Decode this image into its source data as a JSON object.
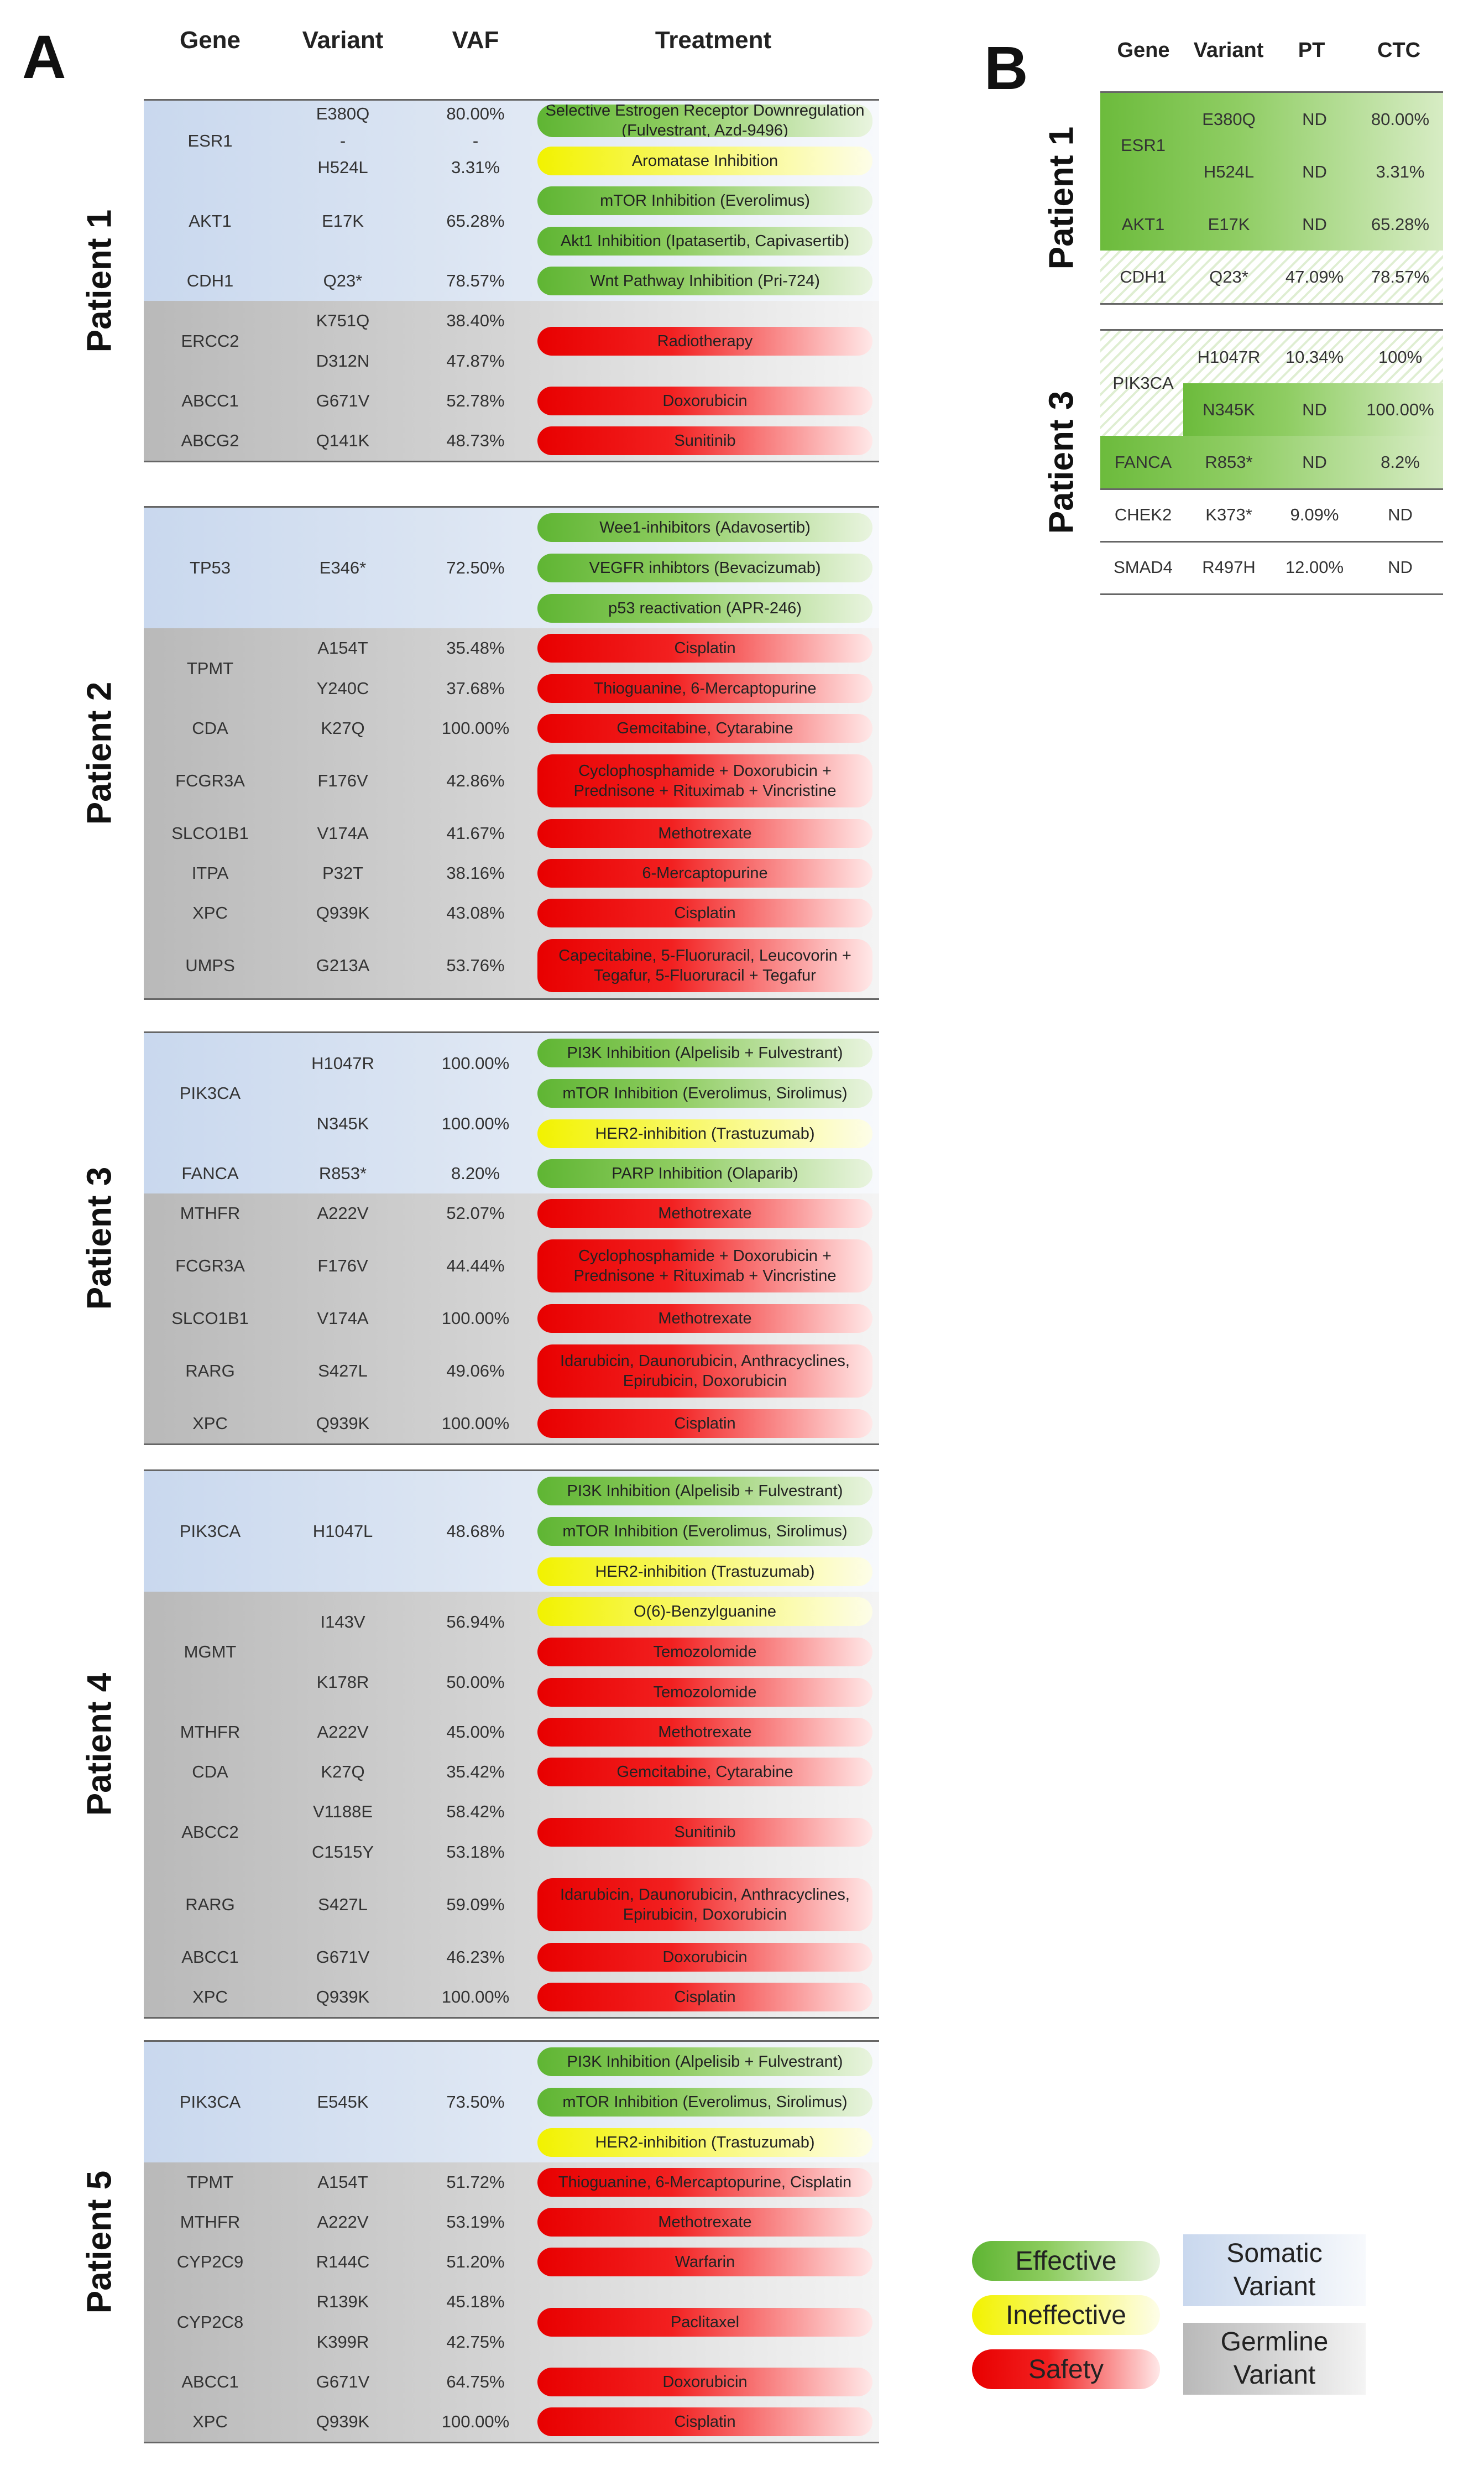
{
  "panel_a": {
    "label": "A",
    "headers": {
      "gene": "Gene",
      "variant": "Variant",
      "vaf": "VAF",
      "treatment": "Treatment"
    },
    "patients": [
      {
        "label": "Patient 1",
        "genes": [
          {
            "gene": "ESR1",
            "type": "somatic",
            "variants": [
              "E380Q",
              "-",
              "H524L"
            ],
            "vafs": [
              "80.00%",
              "-",
              "3.31%"
            ],
            "treatments": [
              {
                "text": "Selective Estrogen Receptor Downregulation (Fulvestrant, Azd-9496)",
                "category": "effective"
              },
              {
                "text": "Aromatase Inhibition",
                "category": "ineffective"
              }
            ]
          },
          {
            "gene": "AKT1",
            "type": "somatic",
            "variants": [
              "E17K"
            ],
            "vafs": [
              "65.28%"
            ],
            "treatments": [
              {
                "text": "mTOR Inhibition (Everolimus)",
                "category": "effective"
              },
              {
                "text": "Akt1 Inhibition (Ipatasertib, Capivasertib)",
                "category": "effective"
              }
            ]
          },
          {
            "gene": "CDH1",
            "type": "somatic",
            "variants": [
              "Q23*"
            ],
            "vafs": [
              "78.57%"
            ],
            "treatments": [
              {
                "text": "Wnt Pathway Inhibition (Pri-724)",
                "category": "effective"
              }
            ]
          },
          {
            "gene": "ERCC2",
            "type": "germline",
            "variants": [
              "K751Q",
              "D312N"
            ],
            "vafs": [
              "38.40%",
              "47.87%"
            ],
            "treatments": [
              {
                "text": "Radiotherapy",
                "category": "safety"
              }
            ]
          },
          {
            "gene": "ABCC1",
            "type": "germline",
            "variants": [
              "G671V"
            ],
            "vafs": [
              "52.78%"
            ],
            "treatments": [
              {
                "text": "Doxorubicin",
                "category": "safety"
              }
            ]
          },
          {
            "gene": "ABCG2",
            "type": "germline",
            "variants": [
              "Q141K"
            ],
            "vafs": [
              "48.73%"
            ],
            "treatments": [
              {
                "text": "Sunitinib",
                "category": "safety"
              }
            ]
          }
        ]
      },
      {
        "label": "Patient 2",
        "genes": [
          {
            "gene": "TP53",
            "type": "somatic",
            "variants": [
              "E346*"
            ],
            "vafs": [
              "72.50%"
            ],
            "treatments": [
              {
                "text": "Wee1-inhibitors (Adavosertib)",
                "category": "effective"
              },
              {
                "text": "VEGFR inhibtors (Bevacizumab)",
                "category": "effective"
              },
              {
                "text": "p53 reactivation (APR-246)",
                "category": "effective"
              }
            ]
          },
          {
            "gene": "TPMT",
            "type": "germline",
            "variants": [
              "A154T",
              "Y240C"
            ],
            "vafs": [
              "35.48%",
              "37.68%"
            ],
            "treatments": [
              {
                "text": "Cisplatin",
                "category": "safety"
              },
              {
                "text": "Thioguanine, 6-Mercaptopurine",
                "category": "safety"
              }
            ]
          },
          {
            "gene": "CDA",
            "type": "germline",
            "variants": [
              "K27Q"
            ],
            "vafs": [
              "100.00%"
            ],
            "treatments": [
              {
                "text": "Gemcitabine, Cytarabine",
                "category": "safety"
              }
            ]
          },
          {
            "gene": "FCGR3A",
            "type": "germline",
            "variants": [
              "F176V"
            ],
            "vafs": [
              "42.86%"
            ],
            "treatments": [
              {
                "text": "Cyclophosphamide + Doxorubicin + Prednisone + Rituximab + Vincristine",
                "category": "safety"
              }
            ]
          },
          {
            "gene": "SLCO1B1",
            "type": "germline",
            "variants": [
              "V174A"
            ],
            "vafs": [
              "41.67%"
            ],
            "treatments": [
              {
                "text": "Methotrexate",
                "category": "safety"
              }
            ]
          },
          {
            "gene": "ITPA",
            "type": "germline",
            "variants": [
              "P32T"
            ],
            "vafs": [
              "38.16%"
            ],
            "treatments": [
              {
                "text": "6-Mercaptopurine",
                "category": "safety"
              }
            ]
          },
          {
            "gene": "XPC",
            "type": "germline",
            "variants": [
              "Q939K"
            ],
            "vafs": [
              "43.08%"
            ],
            "treatments": [
              {
                "text": "Cisplatin",
                "category": "safety"
              }
            ]
          },
          {
            "gene": "UMPS",
            "type": "germline",
            "variants": [
              "G213A"
            ],
            "vafs": [
              "53.76%"
            ],
            "treatments": [
              {
                "text": "Capecitabine, 5-Fluoruracil, Leucovorin + Tegafur, 5-Fluoruracil + Tegafur",
                "category": "safety"
              }
            ]
          }
        ]
      },
      {
        "label": "Patient 3",
        "genes": [
          {
            "gene": "PIK3CA",
            "type": "somatic",
            "variants": [
              "H1047R",
              "N345K"
            ],
            "vafs": [
              "100.00%",
              "100.00%"
            ],
            "treatments": [
              {
                "text": "PI3K Inhibition (Alpelisib + Fulvestrant)",
                "category": "effective"
              },
              {
                "text": "mTOR Inhibition (Everolimus, Sirolimus)",
                "category": "effective"
              },
              {
                "text": "HER2-inhibition (Trastuzumab)",
                "category": "ineffective"
              }
            ]
          },
          {
            "gene": "FANCA",
            "type": "somatic",
            "variants": [
              "R853*"
            ],
            "vafs": [
              "8.20%"
            ],
            "treatments": [
              {
                "text": "PARP Inhibition (Olaparib)",
                "category": "effective"
              }
            ]
          },
          {
            "gene": "MTHFR",
            "type": "germline",
            "variants": [
              "A222V"
            ],
            "vafs": [
              "52.07%"
            ],
            "treatments": [
              {
                "text": "Methotrexate",
                "category": "safety"
              }
            ]
          },
          {
            "gene": "FCGR3A",
            "type": "germline",
            "variants": [
              "F176V"
            ],
            "vafs": [
              "44.44%"
            ],
            "treatments": [
              {
                "text": "Cyclophosphamide + Doxorubicin + Prednisone + Rituximab + Vincristine",
                "category": "safety"
              }
            ]
          },
          {
            "gene": "SLCO1B1",
            "type": "germline",
            "variants": [
              "V174A"
            ],
            "vafs": [
              "100.00%"
            ],
            "treatments": [
              {
                "text": "Methotrexate",
                "category": "safety"
              }
            ]
          },
          {
            "gene": "RARG",
            "type": "germline",
            "variants": [
              "S427L"
            ],
            "vafs": [
              "49.06%"
            ],
            "treatments": [
              {
                "text": "Idarubicin, Daunorubicin, Anthracyclines, Epirubicin, Doxorubicin",
                "category": "safety"
              }
            ]
          },
          {
            "gene": "XPC",
            "type": "germline",
            "variants": [
              "Q939K"
            ],
            "vafs": [
              "100.00%"
            ],
            "treatments": [
              {
                "text": "Cisplatin",
                "category": "safety"
              }
            ]
          }
        ]
      },
      {
        "label": "Patient 4",
        "genes": [
          {
            "gene": "PIK3CA",
            "type": "somatic",
            "variants": [
              "H1047L"
            ],
            "vafs": [
              "48.68%"
            ],
            "treatments": [
              {
                "text": "PI3K Inhibition (Alpelisib + Fulvestrant)",
                "category": "effective"
              },
              {
                "text": "mTOR Inhibition (Everolimus, Sirolimus)",
                "category": "effective"
              },
              {
                "text": "HER2-inhibition (Trastuzumab)",
                "category": "ineffective"
              }
            ]
          },
          {
            "gene": "MGMT",
            "type": "germline",
            "variants": [
              "I143V",
              "K178R"
            ],
            "vafs": [
              "56.94%",
              "50.00%"
            ],
            "treatments": [
              {
                "text": "O(6)-Benzylguanine",
                "category": "ineffective"
              },
              {
                "text": "Temozolomide",
                "category": "safety"
              },
              {
                "text": "Temozolomide",
                "category": "safety"
              }
            ]
          },
          {
            "gene": "MTHFR",
            "type": "germline",
            "variants": [
              "A222V"
            ],
            "vafs": [
              "45.00%"
            ],
            "treatments": [
              {
                "text": "Methotrexate",
                "category": "safety"
              }
            ]
          },
          {
            "gene": "CDA",
            "type": "germline",
            "variants": [
              "K27Q"
            ],
            "vafs": [
              "35.42%"
            ],
            "treatments": [
              {
                "text": "Gemcitabine, Cytarabine",
                "category": "safety"
              }
            ]
          },
          {
            "gene": "ABCC2",
            "type": "germline",
            "variants": [
              "V1188E",
              "C1515Y"
            ],
            "vafs": [
              "58.42%",
              "53.18%"
            ],
            "treatments": [
              {
                "text": "Sunitinib",
                "category": "safety"
              }
            ]
          },
          {
            "gene": "RARG",
            "type": "germline",
            "variants": [
              "S427L"
            ],
            "vafs": [
              "59.09%"
            ],
            "treatments": [
              {
                "text": "Idarubicin, Daunorubicin, Anthracyclines, Epirubicin, Doxorubicin",
                "category": "safety"
              }
            ]
          },
          {
            "gene": "ABCC1",
            "type": "germline",
            "variants": [
              "G671V"
            ],
            "vafs": [
              "46.23%"
            ],
            "treatments": [
              {
                "text": "Doxorubicin",
                "category": "safety"
              }
            ]
          },
          {
            "gene": "XPC",
            "type": "germline",
            "variants": [
              "Q939K"
            ],
            "vafs": [
              "100.00%"
            ],
            "treatments": [
              {
                "text": "Cisplatin",
                "category": "safety"
              }
            ]
          }
        ]
      },
      {
        "label": "Patient 5",
        "genes": [
          {
            "gene": "PIK3CA",
            "type": "somatic",
            "variants": [
              "E545K"
            ],
            "vafs": [
              "73.50%"
            ],
            "treatments": [
              {
                "text": "PI3K Inhibition (Alpelisib + Fulvestrant)",
                "category": "effective"
              },
              {
                "text": "mTOR Inhibition (Everolimus, Sirolimus)",
                "category": "effective"
              },
              {
                "text": "HER2-inhibition (Trastuzumab)",
                "category": "ineffective"
              }
            ]
          },
          {
            "gene": "TPMT",
            "type": "germline",
            "variants": [
              "A154T"
            ],
            "vafs": [
              "51.72%"
            ],
            "treatments": [
              {
                "text": "Thioguanine, 6-Mercaptopurine, Cisplatin",
                "category": "safety"
              }
            ]
          },
          {
            "gene": "MTHFR",
            "type": "germline",
            "variants": [
              "A222V"
            ],
            "vafs": [
              "53.19%"
            ],
            "treatments": [
              {
                "text": "Methotrexate",
                "category": "safety"
              }
            ]
          },
          {
            "gene": "CYP2C9",
            "type": "germline",
            "variants": [
              "R144C"
            ],
            "vafs": [
              "51.20%"
            ],
            "treatments": [
              {
                "text": "Warfarin",
                "category": "safety"
              }
            ]
          },
          {
            "gene": "CYP2C8",
            "type": "germline",
            "variants": [
              "R139K",
              "K399R"
            ],
            "vafs": [
              "45.18%",
              "42.75%"
            ],
            "treatments": [
              {
                "text": "Paclitaxel",
                "category": "safety"
              }
            ]
          },
          {
            "gene": "ABCC1",
            "type": "germline",
            "variants": [
              "G671V"
            ],
            "vafs": [
              "64.75%"
            ],
            "treatments": [
              {
                "text": "Doxorubicin",
                "category": "safety"
              }
            ]
          },
          {
            "gene": "XPC",
            "type": "germline",
            "variants": [
              "Q939K"
            ],
            "vafs": [
              "100.00%"
            ],
            "treatments": [
              {
                "text": "Cisplatin",
                "category": "safety"
              }
            ]
          }
        ]
      }
    ]
  },
  "panel_b": {
    "label": "B",
    "headers": {
      "gene": "Gene",
      "variant": "Variant",
      "pt": "PT",
      "ctc": "CTC"
    },
    "patients": [
      {
        "label": "Patient 1",
        "rows": [
          {
            "gene": "ESR1",
            "variants": [
              "E380Q",
              "H524L"
            ],
            "pt": [
              "ND",
              "ND"
            ],
            "ctc": [
              "80.00%",
              "3.31%"
            ],
            "style": "green"
          },
          {
            "gene": "AKT1",
            "variants": [
              "E17K"
            ],
            "pt": [
              "ND"
            ],
            "ctc": [
              "65.28%"
            ],
            "style": "green"
          },
          {
            "gene": "CDH1",
            "variants": [
              "Q23*"
            ],
            "pt": [
              "47.09%"
            ],
            "ctc": [
              "78.57%"
            ],
            "style": "hatch"
          }
        ]
      },
      {
        "label": "Patient 3",
        "rows": [
          {
            "gene": "PIK3CA",
            "variants": [
              "H1047R",
              "N345K"
            ],
            "pt": [
              "10.34%",
              "ND"
            ],
            "ctc": [
              "100%",
              "100.00%"
            ],
            "style": "mixed"
          },
          {
            "gene": "FANCA",
            "variants": [
              "R853*"
            ],
            "pt": [
              "ND"
            ],
            "ctc": [
              "8.2%"
            ],
            "style": "green"
          },
          {
            "gene": "CHEK2",
            "variants": [
              "K373*"
            ],
            "pt": [
              "9.09%"
            ],
            "ctc": [
              "ND"
            ],
            "style": "plain"
          },
          {
            "gene": "SMAD4",
            "variants": [
              "R497H"
            ],
            "pt": [
              "12.00%"
            ],
            "ctc": [
              "ND"
            ],
            "style": "plain"
          }
        ]
      }
    ]
  },
  "legend": {
    "effective": "Effective",
    "ineffective": "Ineffective",
    "safety": "Safety",
    "somatic": "Somatic Variant",
    "germline": "Germline Variant"
  },
  "colors": {
    "effective": "#6cbb3c",
    "ineffective": "#f2f200",
    "safety": "#e80000",
    "somatic": "#c9d8ee",
    "germline": "#b9b9b9"
  }
}
